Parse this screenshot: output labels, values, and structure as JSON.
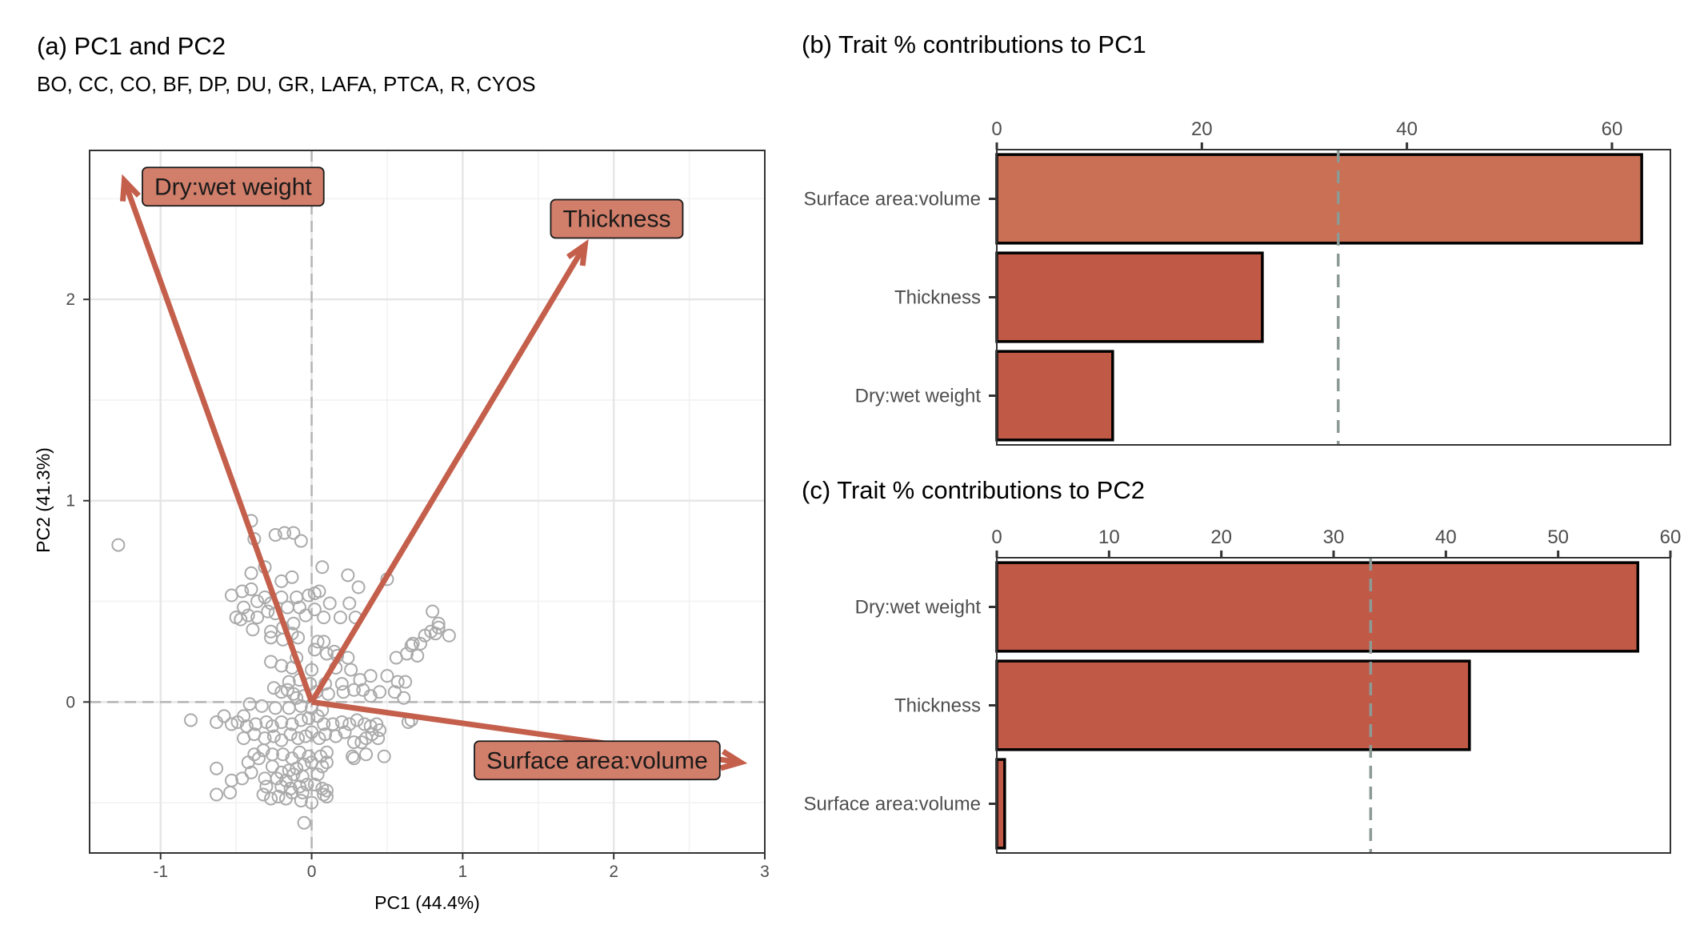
{
  "panels": {
    "a": {
      "title": "(a) PC1 and PC2",
      "subtitle": "BO, CC, CO, BF, DP, DU, GR, LAFA, PTCA, R, CYOS"
    },
    "b": {
      "title": "(b) Trait % contributions to PC1"
    },
    "c": {
      "title": "(c) Trait % contributions to PC2"
    }
  },
  "colors": {
    "bar_fill": "#c05a47",
    "bar_highlight": "#c97055",
    "vector": "#c45f4c",
    "vector_label_fill": "#d17e6a",
    "points": "#aaaaaa",
    "ref_line": "#8c9a96"
  },
  "chart_data": [
    {
      "type": "scatter",
      "panel": "a",
      "title": "(a) PC1 and PC2",
      "subtitle": "BO, CC, CO, BF, DP, DU, GR, LAFA, PTCA, R, CYOS",
      "xlabel": "PC1 (44.4%)",
      "ylabel": "PC2 (41.3%)",
      "xlim": [
        -1.47,
        3.0
      ],
      "ylim": [
        -0.75,
        2.74
      ],
      "xticks": [
        -1,
        0,
        1,
        2,
        3
      ],
      "yticks": [
        0,
        1,
        2
      ],
      "grid": true,
      "zero_lines": "dashed",
      "points": [
        [
          -1.28,
          0.78
        ],
        [
          -0.4,
          0.9
        ],
        [
          -0.38,
          0.81
        ],
        [
          -0.24,
          0.83
        ],
        [
          -0.18,
          0.84
        ],
        [
          -0.12,
          0.84
        ],
        [
          -0.07,
          0.8
        ],
        [
          -0.4,
          0.64
        ],
        [
          -0.31,
          0.67
        ],
        [
          -0.2,
          0.6
        ],
        [
          -0.13,
          0.62
        ],
        [
          0.07,
          0.67
        ],
        [
          0.24,
          0.63
        ],
        [
          0.31,
          0.57
        ],
        [
          0.5,
          0.61
        ],
        [
          -0.53,
          0.53
        ],
        [
          -0.46,
          0.55
        ],
        [
          -0.4,
          0.56
        ],
        [
          -0.36,
          0.5
        ],
        [
          -0.31,
          0.52
        ],
        [
          -0.27,
          0.49
        ],
        [
          -0.2,
          0.52
        ],
        [
          -0.1,
          0.52
        ],
        [
          -0.02,
          0.53
        ],
        [
          0.02,
          0.54
        ],
        [
          0.05,
          0.55
        ],
        [
          -0.45,
          0.47
        ],
        [
          -0.42,
          0.43
        ],
        [
          -0.36,
          0.42
        ],
        [
          -0.29,
          0.45
        ],
        [
          -0.24,
          0.44
        ],
        [
          -0.16,
          0.47
        ],
        [
          -0.08,
          0.47
        ],
        [
          0.02,
          0.46
        ],
        [
          0.12,
          0.49
        ],
        [
          0.25,
          0.49
        ],
        [
          -0.5,
          0.42
        ],
        [
          -0.47,
          0.41
        ],
        [
          -0.39,
          0.36
        ],
        [
          -0.27,
          0.35
        ],
        [
          -0.19,
          0.37
        ],
        [
          -0.12,
          0.39
        ],
        [
          -0.04,
          0.43
        ],
        [
          0.08,
          0.42
        ],
        [
          0.19,
          0.42
        ],
        [
          0.29,
          0.42
        ],
        [
          -0.13,
          0.34
        ],
        [
          -0.09,
          0.32
        ],
        [
          0.04,
          0.3
        ],
        [
          0.08,
          0.3
        ],
        [
          0.02,
          0.26
        ],
        [
          0.1,
          0.24
        ],
        [
          0.15,
          0.25
        ],
        [
          -0.27,
          0.32
        ],
        [
          -0.19,
          0.31
        ],
        [
          -0.1,
          0.22
        ],
        [
          0.17,
          0.23
        ],
        [
          0.24,
          0.22
        ],
        [
          -0.27,
          0.2
        ],
        [
          -0.2,
          0.18
        ],
        [
          -0.13,
          0.17
        ],
        [
          0.0,
          0.16
        ],
        [
          0.16,
          0.17
        ],
        [
          0.26,
          0.16
        ],
        [
          0.32,
          0.11
        ],
        [
          0.39,
          0.13
        ],
        [
          -0.15,
          0.1
        ],
        [
          -0.08,
          0.11
        ],
        [
          -0.01,
          0.09
        ],
        [
          0.09,
          0.09
        ],
        [
          0.2,
          0.09
        ],
        [
          0.56,
          0.22
        ],
        [
          0.63,
          0.24
        ],
        [
          0.66,
          0.28
        ],
        [
          0.72,
          0.29
        ],
        [
          0.75,
          0.33
        ],
        [
          0.79,
          0.35
        ],
        [
          0.82,
          0.34
        ],
        [
          0.84,
          0.37
        ],
        [
          0.91,
          0.33
        ],
        [
          0.84,
          0.39
        ],
        [
          0.8,
          0.45
        ],
        [
          0.67,
          0.29
        ],
        [
          0.5,
          0.13
        ],
        [
          0.57,
          0.1
        ],
        [
          0.62,
          0.1
        ],
        [
          0.7,
          0.23
        ],
        [
          -0.25,
          0.07
        ],
        [
          -0.2,
          0.05
        ],
        [
          -0.16,
          0.06
        ],
        [
          -0.12,
          0.04
        ],
        [
          -0.1,
          0.02
        ],
        [
          -0.05,
          0.03
        ],
        [
          0.03,
          0.05
        ],
        [
          0.11,
          0.04
        ],
        [
          0.21,
          0.05
        ],
        [
          0.28,
          0.06
        ],
        [
          0.34,
          0.06
        ],
        [
          0.39,
          0.03
        ],
        [
          0.45,
          0.05
        ],
        [
          0.55,
          0.05
        ],
        [
          0.61,
          0.02
        ],
        [
          -0.41,
          -0.01
        ],
        [
          -0.33,
          -0.02
        ],
        [
          -0.24,
          -0.03
        ],
        [
          -0.15,
          -0.03
        ],
        [
          -0.07,
          -0.02
        ],
        [
          0.0,
          -0.03
        ],
        [
          0.07,
          -0.04
        ],
        [
          -0.8,
          -0.09
        ],
        [
          -0.58,
          -0.07
        ],
        [
          -0.45,
          -0.07
        ],
        [
          -0.53,
          -0.11
        ],
        [
          -0.49,
          -0.1
        ],
        [
          -0.43,
          -0.12
        ],
        [
          -0.37,
          -0.11
        ],
        [
          -0.3,
          -0.1
        ],
        [
          -0.26,
          -0.12
        ],
        [
          -0.2,
          -0.1
        ],
        [
          -0.13,
          -0.11
        ],
        [
          -0.07,
          -0.09
        ],
        [
          -0.02,
          -0.08
        ],
        [
          0.04,
          -0.07
        ],
        [
          0.08,
          -0.11
        ],
        [
          0.14,
          -0.11
        ],
        [
          0.2,
          -0.1
        ],
        [
          0.25,
          -0.11
        ],
        [
          0.3,
          -0.09
        ],
        [
          0.35,
          -0.11
        ],
        [
          0.39,
          -0.12
        ],
        [
          0.43,
          -0.11
        ],
        [
          0.45,
          -0.14
        ],
        [
          0.4,
          -0.16
        ],
        [
          0.36,
          -0.18
        ],
        [
          0.44,
          -0.18
        ],
        [
          0.64,
          -0.1
        ],
        [
          0.66,
          -0.09
        ],
        [
          -0.63,
          -0.1
        ],
        [
          -0.45,
          -0.18
        ],
        [
          -0.38,
          -0.16
        ],
        [
          -0.31,
          -0.18
        ],
        [
          -0.25,
          -0.17
        ],
        [
          -0.2,
          -0.19
        ],
        [
          -0.14,
          -0.16
        ],
        [
          -0.09,
          -0.18
        ],
        [
          -0.04,
          -0.17
        ],
        [
          0.0,
          -0.15
        ],
        [
          0.05,
          -0.18
        ],
        [
          0.09,
          -0.16
        ],
        [
          0.16,
          -0.17
        ],
        [
          0.22,
          -0.15
        ],
        [
          0.28,
          -0.2
        ],
        [
          0.33,
          -0.2
        ],
        [
          -0.38,
          -0.26
        ],
        [
          -0.32,
          -0.24
        ],
        [
          -0.26,
          -0.26
        ],
        [
          -0.19,
          -0.26
        ],
        [
          -0.13,
          -0.28
        ],
        [
          -0.08,
          -0.25
        ],
        [
          -0.02,
          -0.27
        ],
        [
          0.06,
          -0.27
        ],
        [
          0.1,
          -0.25
        ],
        [
          0.27,
          -0.27
        ],
        [
          0.28,
          -0.28
        ],
        [
          0.36,
          -0.26
        ],
        [
          0.48,
          -0.27
        ],
        [
          -0.42,
          -0.3
        ],
        [
          -0.35,
          -0.28
        ],
        [
          -0.26,
          -0.32
        ],
        [
          -0.2,
          -0.35
        ],
        [
          -0.15,
          -0.34
        ],
        [
          -0.1,
          -0.33
        ],
        [
          -0.05,
          -0.31
        ],
        [
          0.0,
          -0.3
        ],
        [
          0.07,
          -0.32
        ],
        [
          0.1,
          -0.3
        ],
        [
          -0.63,
          -0.33
        ],
        [
          -0.46,
          -0.38
        ],
        [
          -0.4,
          -0.35
        ],
        [
          -0.31,
          -0.38
        ],
        [
          -0.23,
          -0.38
        ],
        [
          -0.17,
          -0.39
        ],
        [
          -0.12,
          -0.36
        ],
        [
          -0.06,
          -0.37
        ],
        [
          0.04,
          -0.36
        ],
        [
          -0.53,
          -0.39
        ],
        [
          -0.3,
          -0.42
        ],
        [
          -0.2,
          -0.42
        ],
        [
          -0.14,
          -0.43
        ],
        [
          -0.08,
          -0.42
        ],
        [
          -0.03,
          -0.41
        ],
        [
          0.02,
          -0.41
        ],
        [
          -0.54,
          -0.45
        ],
        [
          -0.32,
          -0.46
        ],
        [
          -0.22,
          -0.47
        ],
        [
          -0.13,
          -0.45
        ],
        [
          -0.06,
          -0.45
        ],
        [
          0.07,
          -0.43
        ],
        [
          0.1,
          -0.44
        ],
        [
          -0.63,
          -0.46
        ],
        [
          -0.27,
          -0.48
        ],
        [
          -0.17,
          -0.48
        ],
        [
          -0.07,
          -0.49
        ],
        [
          0.0,
          -0.5
        ],
        [
          0.08,
          -0.46
        ],
        [
          0.1,
          -0.47
        ],
        [
          -0.05,
          -0.6
        ]
      ],
      "vectors": [
        {
          "label": "Dry:wet weight",
          "x": -1.24,
          "y": 2.59
        },
        {
          "label": "Thickness",
          "x": 1.81,
          "y": 2.27
        },
        {
          "label": "Surface area:volume",
          "x": 2.84,
          "y": -0.3
        }
      ],
      "vector_labels_pos": [
        {
          "x": -0.52,
          "y": 2.56
        },
        {
          "x": 2.02,
          "y": 2.4
        },
        {
          "x": 1.89,
          "y": -0.29
        }
      ]
    },
    {
      "type": "bar",
      "orientation": "horizontal",
      "panel": "b",
      "title": "(b) Trait % contributions to PC1",
      "categories": [
        "Surface area:volume",
        "Thickness",
        "Dry:wet weight"
      ],
      "values": [
        62.9,
        25.9,
        11.3
      ],
      "highlight": "Surface area:volume",
      "xlim": [
        0,
        65.7
      ],
      "xticks": [
        0,
        20,
        40,
        60
      ],
      "xaxis_position": "top",
      "reference_line": 33.3
    },
    {
      "type": "bar",
      "orientation": "horizontal",
      "panel": "c",
      "title": "(c) Trait % contributions to PC2",
      "categories": [
        "Dry:wet weight",
        "Thickness",
        "Surface area:volume"
      ],
      "values": [
        57.1,
        42.1,
        0.7
      ],
      "xlim": [
        0,
        60
      ],
      "xticks": [
        0,
        10,
        20,
        30,
        40,
        50,
        60
      ],
      "xaxis_position": "top",
      "reference_line": 33.3
    }
  ]
}
